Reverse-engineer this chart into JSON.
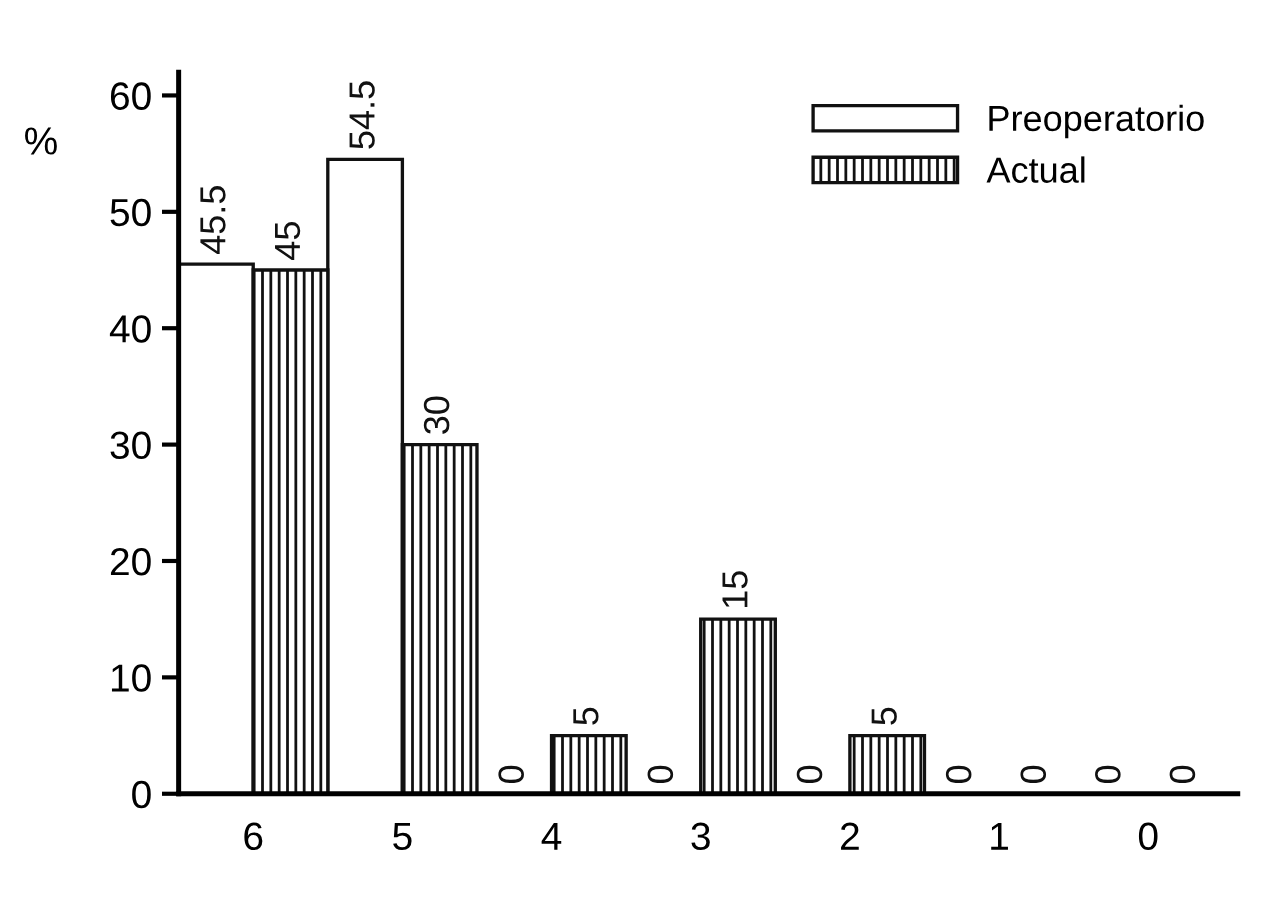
{
  "chart_data": {
    "type": "bar",
    "ylabel": "%",
    "categories": [
      "6",
      "5",
      "4",
      "3",
      "2",
      "1",
      "0"
    ],
    "series": [
      {
        "name": "Preoperatorio",
        "color": "#ffffff",
        "values": [
          45.5,
          54.5,
          0,
          0,
          0,
          0,
          0
        ]
      },
      {
        "name": "Actual",
        "color": "#111111",
        "values": [
          45,
          30,
          5,
          15,
          5,
          0,
          0
        ]
      }
    ],
    "ylim": [
      0,
      62
    ],
    "yticks": [
      0,
      10,
      20,
      30,
      40,
      50,
      60
    ],
    "data_labels": true,
    "grid": false,
    "legend": "top right"
  }
}
